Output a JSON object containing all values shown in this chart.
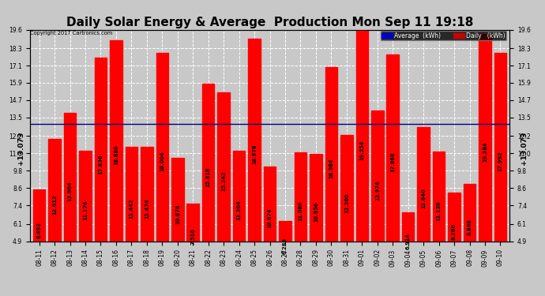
{
  "title": "Daily Solar Energy & Average  Production Mon Sep 11 19:18",
  "copyright": "Copyright 2017 Cartronics.com",
  "average_value": 13.073,
  "average_label": "+13.073",
  "categories": [
    "08-11",
    "08-12",
    "08-13",
    "08-14",
    "08-15",
    "08-16",
    "08-17",
    "08-18",
    "08-19",
    "08-20",
    "08-21",
    "08-22",
    "08-23",
    "08-24",
    "08-25",
    "08-26",
    "08-27",
    "08-28",
    "08-29",
    "08-30",
    "08-31",
    "09-01",
    "09-02",
    "09-03",
    "09-04",
    "09-05",
    "09-06",
    "09-07",
    "09-08",
    "09-09",
    "09-10"
  ],
  "values": [
    8.492,
    12.012,
    13.804,
    11.176,
    17.636,
    18.88,
    11.442,
    11.474,
    18.004,
    10.676,
    7.516,
    15.818,
    15.242,
    11.204,
    18.978,
    10.074,
    6.286,
    11.08,
    10.956,
    16.984,
    12.26,
    19.554,
    13.974,
    17.868,
    6.914,
    12.84,
    11.138,
    8.26,
    8.868,
    19.284,
    17.992
  ],
  "bar_color": "#ff0000",
  "avg_line_color": "#000080",
  "background_color": "#c8c8c8",
  "plot_bg_color": "#c8c8c8",
  "grid_color": "#ffffff",
  "ylim_min": 4.9,
  "ylim_max": 19.6,
  "yticks": [
    4.9,
    6.1,
    7.4,
    8.6,
    9.8,
    11.0,
    12.2,
    13.5,
    14.7,
    15.9,
    17.1,
    18.3,
    19.6
  ],
  "legend_avg_color": "#0000cc",
  "legend_daily_color": "#cc0000",
  "title_fontsize": 11,
  "tick_fontsize": 5.5,
  "value_fontsize": 4.8
}
